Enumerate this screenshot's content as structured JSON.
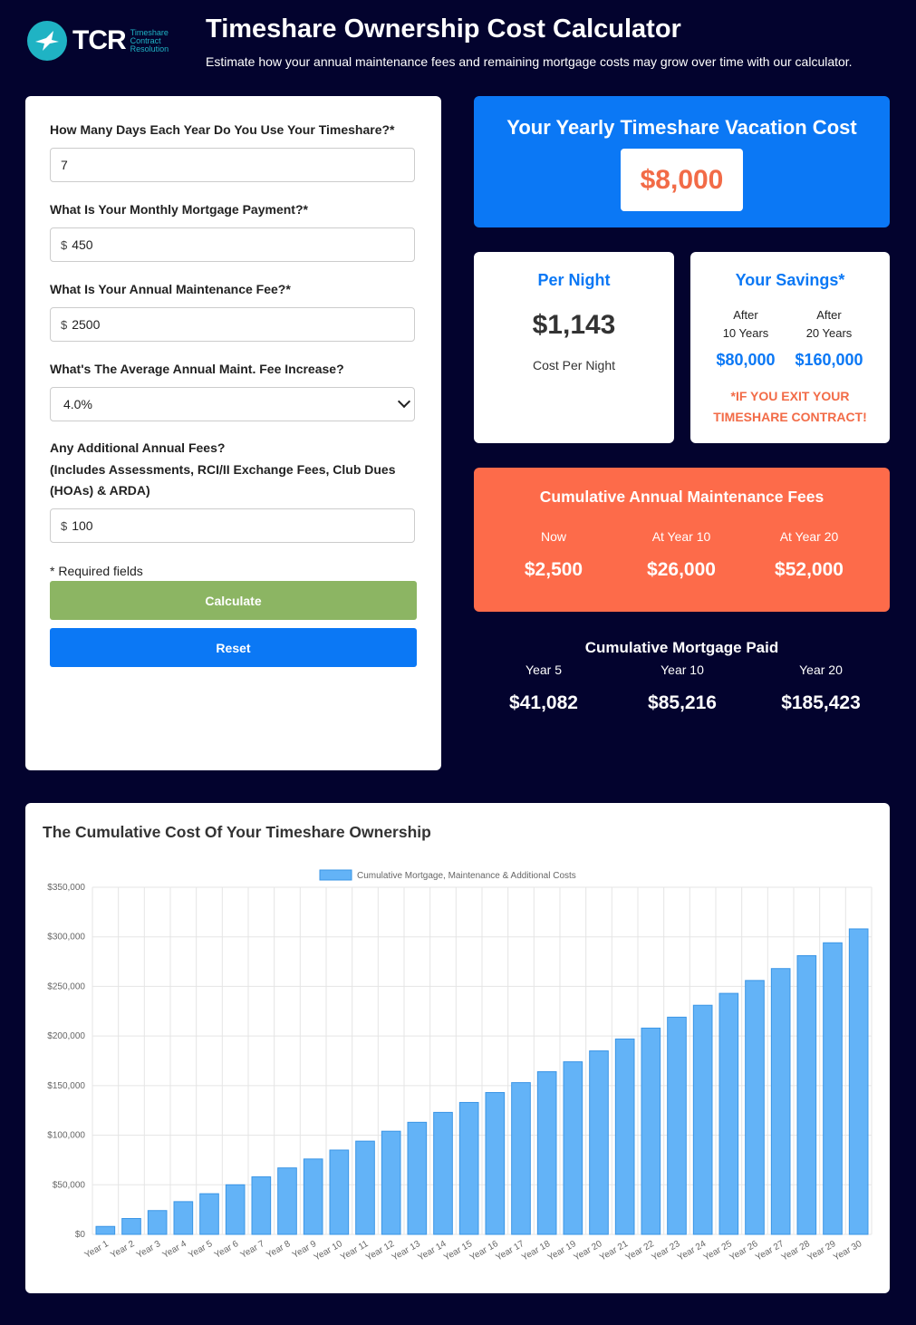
{
  "header": {
    "logo_text": "TCR",
    "logo_subtext": [
      "Timeshare",
      "Contract",
      "Resolution"
    ],
    "title": "Timeshare Ownership Cost Calculator",
    "subtitle": "Estimate how your annual maintenance fees and remaining mortgage costs may grow over time with our calculator."
  },
  "form": {
    "days_label": "How Many Days Each Year Do You Use Your Timeshare?*",
    "days_value": "7",
    "mortgage_label": "What Is Your Monthly Mortgage Payment?*",
    "mortgage_prefix": "$",
    "mortgage_value": "450",
    "maintenance_label": "What Is Your Annual Maintenance Fee?*",
    "maintenance_prefix": "$",
    "maintenance_value": "2500",
    "increase_label": "What's The Average Annual Maint. Fee Increase?",
    "increase_value": "4.0%",
    "additional_label_lines": [
      "Any Additional Annual Fees?",
      "(Includes Assessments, RCI/II Exchange Fees, Club Dues",
      "(HOAs) & ARDA)"
    ],
    "additional_prefix": "$",
    "additional_value": "100",
    "required_note": "* Required fields",
    "calculate_label": "Calculate",
    "reset_label": "Reset"
  },
  "yearly": {
    "title": "Your Yearly Timeshare Vacation Cost",
    "value": "$8,000"
  },
  "per_night": {
    "title": "Per Night",
    "value": "$1,143",
    "label": "Cost Per Night"
  },
  "savings": {
    "title": "Your Savings*",
    "col1_line1": "After",
    "col1_line2": "10 Years",
    "col1_amount": "$80,000",
    "col2_line1": "After",
    "col2_line2": "20 Years",
    "col2_amount": "$160,000",
    "note_line1": "*IF YOU EXIT YOUR",
    "note_line2": "TIMESHARE CONTRACT!"
  },
  "maintenance": {
    "title": "Cumulative Annual Maintenance Fees",
    "cols": [
      {
        "label": "Now",
        "amount": "$2,500"
      },
      {
        "label": "At Year 10",
        "amount": "$26,000"
      },
      {
        "label": "At Year 20",
        "amount": "$52,000"
      }
    ]
  },
  "mortgage": {
    "title": "Cumulative Mortgage Paid",
    "cols": [
      {
        "label": "Year 5",
        "amount": "$41,082"
      },
      {
        "label": "Year 10",
        "amount": "$85,216"
      },
      {
        "label": "Year 20",
        "amount": "$185,423"
      }
    ]
  },
  "colors": {
    "background": "#03032e",
    "blue": "#0b78f5",
    "orange": "#fd6b4a",
    "green": "#8cb563",
    "bar_fill": "#63b3f7",
    "bar_border": "#3a95e6"
  },
  "chart_title": "The Cumulative Cost Of Your Timeshare Ownership",
  "chart_data": {
    "type": "bar",
    "title": "The Cumulative Cost Of Your Timeshare Ownership",
    "legend": "top-center",
    "grid": true,
    "categories": [
      "Year 1",
      "Year 2",
      "Year 3",
      "Year 4",
      "Year 5",
      "Year 6",
      "Year 7",
      "Year 8",
      "Year 9",
      "Year 10",
      "Year 11",
      "Year 12",
      "Year 13",
      "Year 14",
      "Year 15",
      "Year 16",
      "Year 17",
      "Year 18",
      "Year 19",
      "Year 20",
      "Year 21",
      "Year 22",
      "Year 23",
      "Year 24",
      "Year 25",
      "Year 26",
      "Year 27",
      "Year 28",
      "Year 29",
      "Year 30"
    ],
    "series": [
      {
        "name": "Cumulative Mortgage, Maintenance & Additional Costs",
        "values": [
          8000,
          16000,
          24000,
          33000,
          41000,
          50000,
          58000,
          67000,
          76000,
          85000,
          94000,
          104000,
          113000,
          123000,
          133000,
          143000,
          153000,
          164000,
          174000,
          185000,
          197000,
          208000,
          219000,
          231000,
          243000,
          256000,
          268000,
          281000,
          294000,
          308000
        ]
      }
    ],
    "yticks": [
      "$0",
      "$50,000",
      "$100,000",
      "$150,000",
      "$200,000",
      "$250,000",
      "$300,000",
      "$350,000"
    ],
    "ylim": [
      0,
      350000
    ]
  }
}
